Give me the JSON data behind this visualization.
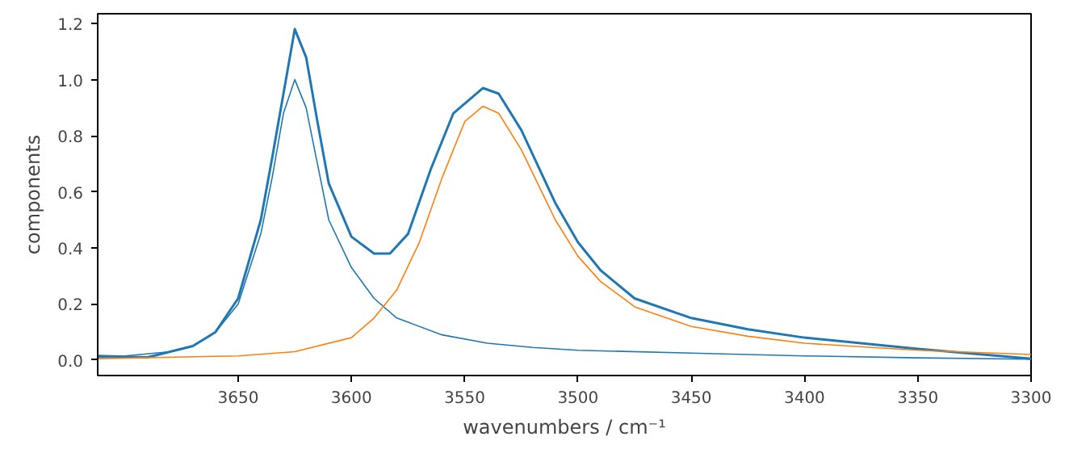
{
  "chart_data": {
    "type": "line",
    "xlabel": "wavenumbers / cm⁻¹",
    "ylabel": "components",
    "xlim": [
      3712,
      3300
    ],
    "ylim": [
      -0.055,
      1.235
    ],
    "xticks": [
      3650,
      3600,
      3550,
      3500,
      3450,
      3400,
      3350,
      3300
    ],
    "yticks": [
      {
        "value": 0,
        "label": "0.0"
      },
      {
        "value": 0.2,
        "label": "0.2"
      },
      {
        "value": 0.4,
        "label": "0.4"
      },
      {
        "value": 0.6,
        "label": "0.6"
      },
      {
        "value": 0.8,
        "label": "0.8"
      },
      {
        "value": 1,
        "label": "1.0"
      },
      {
        "value": 1.2,
        "label": "1.2"
      }
    ],
    "grid": false,
    "series": [
      {
        "color": "#1f77b4",
        "x": [
          3712,
          3700,
          3690,
          3680,
          3670,
          3660,
          3650,
          3640,
          3635,
          3630,
          3625,
          3620,
          3615,
          3610,
          3600,
          3590,
          3583,
          3575,
          3565,
          3555,
          3542,
          3535,
          3525,
          3510,
          3500,
          3490,
          3475,
          3450,
          3425,
          3400,
          3350,
          3300
        ],
        "values": [
          0.015,
          0.012,
          0.01,
          0.03,
          0.05,
          0.1,
          0.22,
          0.5,
          0.72,
          0.95,
          1.18,
          1.08,
          0.85,
          0.63,
          0.44,
          0.38,
          0.38,
          0.45,
          0.68,
          0.88,
          0.97,
          0.95,
          0.82,
          0.56,
          0.42,
          0.32,
          0.22,
          0.15,
          0.11,
          0.08,
          0.04,
          0.005
        ]
      },
      {
        "color": "#1f77b4",
        "x": [
          3712,
          3700,
          3680,
          3670,
          3660,
          3650,
          3640,
          3635,
          3630,
          3625,
          3620,
          3615,
          3610,
          3600,
          3590,
          3580,
          3560,
          3540,
          3520,
          3500,
          3450,
          3400,
          3350,
          3300
        ],
        "values": [
          0.01,
          0.015,
          0.03,
          0.05,
          0.1,
          0.2,
          0.45,
          0.65,
          0.88,
          1.0,
          0.9,
          0.7,
          0.5,
          0.33,
          0.22,
          0.15,
          0.09,
          0.06,
          0.045,
          0.035,
          0.025,
          0.015,
          0.008,
          0.003
        ]
      },
      {
        "color": "#ff7f0e",
        "x": [
          3712,
          3650,
          3625,
          3600,
          3590,
          3580,
          3570,
          3560,
          3550,
          3542,
          3535,
          3525,
          3510,
          3500,
          3490,
          3475,
          3450,
          3425,
          3400,
          3350,
          3300
        ],
        "values": [
          0.005,
          0.015,
          0.03,
          0.08,
          0.15,
          0.25,
          0.42,
          0.65,
          0.85,
          0.905,
          0.88,
          0.75,
          0.5,
          0.37,
          0.28,
          0.19,
          0.12,
          0.085,
          0.06,
          0.035,
          0.02
        ]
      }
    ]
  }
}
